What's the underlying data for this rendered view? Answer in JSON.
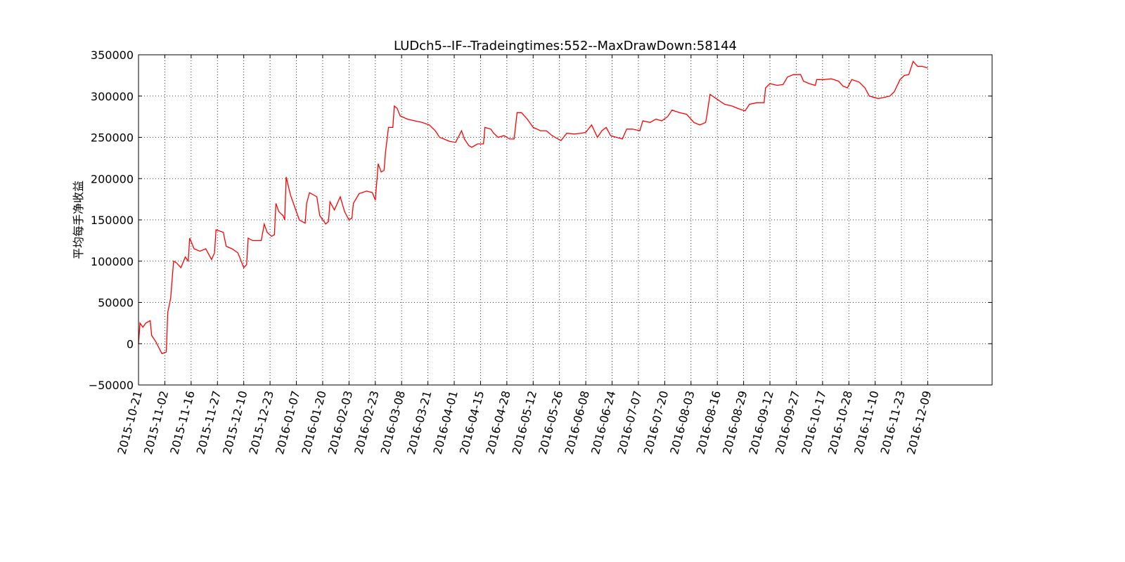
{
  "chart_data": {
    "type": "line",
    "title": "LUDch5--IF--Tradeingtimes:552--MaxDrawDown:58144",
    "y_label": "平均每手净收益",
    "grid": true,
    "xlim": [
      0,
      584
    ],
    "ylim": [
      -50000,
      350000
    ],
    "yticks": [
      {
        "value": -50000,
        "label": "−50000"
      },
      0,
      50000,
      100000,
      150000,
      200000,
      250000,
      300000,
      350000
    ],
    "xticks": [
      {
        "value": 0,
        "label": "2015-10-21"
      },
      {
        "value": 18,
        "label": "2015-11-02"
      },
      {
        "value": 36,
        "label": "2015-11-16"
      },
      {
        "value": 54,
        "label": "2015-11-27"
      },
      {
        "value": 72,
        "label": "2015-12-10"
      },
      {
        "value": 90,
        "label": "2015-12-23"
      },
      {
        "value": 108,
        "label": "2016-01-07"
      },
      {
        "value": 126,
        "label": "2016-01-20"
      },
      {
        "value": 144,
        "label": "2016-02-03"
      },
      {
        "value": 162,
        "label": "2016-02-23"
      },
      {
        "value": 180,
        "label": "2016-03-08"
      },
      {
        "value": 198,
        "label": "2016-03-21"
      },
      {
        "value": 216,
        "label": "2016-04-01"
      },
      {
        "value": 234,
        "label": "2016-04-15"
      },
      {
        "value": 252,
        "label": "2016-04-28"
      },
      {
        "value": 270,
        "label": "2016-05-12"
      },
      {
        "value": 288,
        "label": "2016-05-26"
      },
      {
        "value": 306,
        "label": "2016-06-08"
      },
      {
        "value": 324,
        "label": "2016-06-24"
      },
      {
        "value": 342,
        "label": "2016-07-07"
      },
      {
        "value": 360,
        "label": "2016-07-20"
      },
      {
        "value": 378,
        "label": "2016-08-03"
      },
      {
        "value": 396,
        "label": "2016-08-16"
      },
      {
        "value": 414,
        "label": "2016-08-29"
      },
      {
        "value": 432,
        "label": "2016-09-12"
      },
      {
        "value": 450,
        "label": "2016-09-27"
      },
      {
        "value": 468,
        "label": "2016-10-17"
      },
      {
        "value": 486,
        "label": "2016-10-28"
      },
      {
        "value": 504,
        "label": "2016-11-10"
      },
      {
        "value": 522,
        "label": "2016-11-23"
      },
      {
        "value": 540,
        "label": "2016-12-09"
      }
    ],
    "x": [
      0,
      1,
      3,
      5,
      8,
      9,
      12,
      16,
      19,
      20,
      22,
      24,
      26,
      29,
      32,
      34,
      35,
      38,
      42,
      46,
      50,
      52,
      53,
      58,
      60,
      64,
      68,
      72,
      74,
      75,
      78,
      84,
      86,
      88,
      91,
      93,
      94,
      96,
      99,
      100,
      101,
      104,
      107,
      110,
      112,
      114,
      115,
      117,
      122,
      124,
      127,
      128,
      130,
      131,
      134,
      138,
      141,
      144,
      146,
      147,
      151,
      153,
      156,
      160,
      162,
      164,
      166,
      168,
      169,
      171,
      174,
      175,
      177,
      179,
      184,
      189,
      194,
      199,
      203,
      206,
      209,
      213,
      217,
      221,
      223,
      226,
      228,
      232,
      236,
      237,
      241,
      243,
      246,
      250,
      254,
      257,
      259,
      262,
      266,
      270,
      275,
      279,
      283,
      289,
      293,
      298,
      303,
      306,
      310,
      314,
      317,
      320,
      323,
      327,
      331,
      334,
      338,
      343,
      345,
      350,
      354,
      358,
      362,
      365,
      370,
      375,
      380,
      384,
      388,
      389,
      391,
      396,
      401,
      406,
      410,
      415,
      418,
      423,
      428,
      429,
      432,
      437,
      441,
      444,
      448,
      453,
      455,
      459,
      463,
      464,
      469,
      474,
      479,
      482,
      485,
      488,
      493,
      497,
      500,
      506,
      509,
      514,
      517,
      521,
      524,
      527,
      530,
      533,
      536,
      540
    ],
    "series": [
      {
        "color": "#ff0000",
        "values": [
          0,
          25000,
          20000,
          25000,
          28000,
          10000,
          2000,
          -12000,
          -10000,
          38000,
          55000,
          100000,
          98000,
          92000,
          105000,
          100000,
          128000,
          115000,
          112000,
          115000,
          102000,
          110000,
          138000,
          135000,
          118000,
          115000,
          110000,
          92000,
          96000,
          128000,
          125000,
          125000,
          145000,
          135000,
          130000,
          132000,
          170000,
          160000,
          155000,
          150000,
          202000,
          180000,
          165000,
          150000,
          148000,
          146000,
          170000,
          183000,
          178000,
          155000,
          148000,
          145000,
          148000,
          172000,
          162000,
          178000,
          160000,
          150000,
          152000,
          170000,
          182000,
          183000,
          185000,
          183000,
          174000,
          218000,
          208000,
          210000,
          232000,
          262000,
          262000,
          288000,
          285000,
          276000,
          272000,
          270000,
          268000,
          265000,
          258000,
          250000,
          248000,
          245000,
          244000,
          258000,
          248000,
          240000,
          238000,
          242000,
          242000,
          262000,
          260000,
          255000,
          250000,
          252000,
          248000,
          248000,
          280000,
          280000,
          272000,
          262000,
          258000,
          258000,
          252000,
          246000,
          255000,
          254000,
          255000,
          256000,
          265000,
          250000,
          258000,
          262000,
          252000,
          250000,
          248000,
          260000,
          260000,
          258000,
          270000,
          268000,
          272000,
          270000,
          275000,
          283000,
          280000,
          278000,
          268000,
          265000,
          268000,
          278000,
          302000,
          296000,
          290000,
          288000,
          285000,
          282000,
          290000,
          292000,
          292000,
          310000,
          315000,
          313000,
          314000,
          323000,
          326000,
          326000,
          318000,
          315000,
          313000,
          320000,
          320000,
          321000,
          318000,
          312000,
          310000,
          320000,
          317000,
          310000,
          300000,
          297000,
          298000,
          300000,
          305000,
          320000,
          325000,
          326000,
          342000,
          336000,
          336000,
          334000
        ]
      }
    ]
  }
}
